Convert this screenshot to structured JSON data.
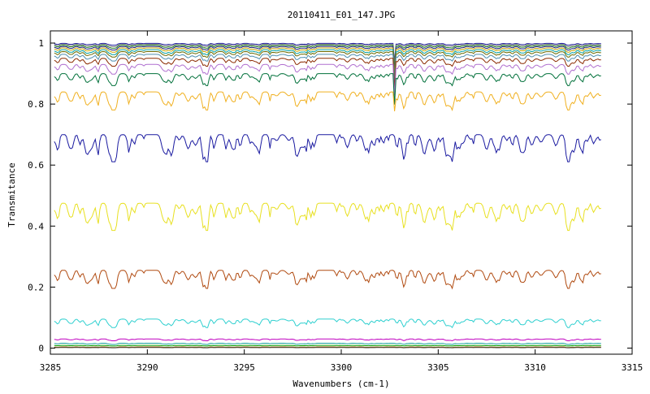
{
  "chart_data": {
    "type": "line",
    "title": "20110411_E01_147.JPG",
    "xlabel": "Wavenumbers (cm-1)",
    "ylabel": "Transmitance",
    "xlim": [
      3285,
      3315
    ],
    "ylim": [
      -0.02,
      1.04
    ],
    "x_ticks": [
      3285,
      3290,
      3295,
      3300,
      3305,
      3310,
      3315
    ],
    "y_ticks": [
      0,
      0.2,
      0.4,
      0.6,
      0.8,
      1
    ],
    "x_tick_labels": [
      "3285",
      "3290",
      "3295",
      "3300",
      "3305",
      "3310",
      "3315"
    ],
    "y_tick_labels": [
      "0",
      "0.2",
      "0.4",
      "0.6",
      "0.8",
      "1"
    ],
    "grid": false,
    "x_data_range": [
      3285.2,
      3313.4
    ],
    "sharp_absorption_line_x": 3302.75,
    "series": [
      {
        "baseline": 0.999,
        "noise": 0.003,
        "line_depth": 0.06,
        "color": "#1f1f9f"
      },
      {
        "baseline": 0.996,
        "noise": 0.004,
        "line_depth": 0.07,
        "color": "#888888"
      },
      {
        "baseline": 0.993,
        "noise": 0.005,
        "line_depth": 0.08,
        "color": "#2a8a2a"
      },
      {
        "baseline": 0.989,
        "noise": 0.006,
        "line_depth": 0.09,
        "color": "#1a1a7a"
      },
      {
        "baseline": 0.984,
        "noise": 0.007,
        "line_depth": 0.09,
        "color": "#c8a000"
      },
      {
        "baseline": 0.978,
        "noise": 0.008,
        "line_depth": 0.1,
        "color": "#00a0a0"
      },
      {
        "baseline": 0.972,
        "noise": 0.009,
        "line_depth": 0.1,
        "color": "#6a6a00"
      },
      {
        "baseline": 0.963,
        "noise": 0.011,
        "line_depth": 0.1,
        "color": "#4f8fb0"
      },
      {
        "baseline": 0.95,
        "noise": 0.013,
        "line_depth": 0.1,
        "color": "#8b2a00"
      },
      {
        "baseline": 0.93,
        "noise": 0.016,
        "line_depth": 0.1,
        "color": "#b070d0"
      },
      {
        "baseline": 0.9,
        "noise": 0.02,
        "line_depth": 0.1,
        "color": "#00703a"
      },
      {
        "baseline": 0.84,
        "noise": 0.03,
        "line_depth": 0.06,
        "color": "#f0b020"
      },
      {
        "baseline": 0.7,
        "noise": 0.045,
        "line_depth": 0.0,
        "color": "#1a1aa0"
      },
      {
        "baseline": 0.475,
        "noise": 0.045,
        "line_depth": 0.0,
        "color": "#e8e020"
      },
      {
        "baseline": 0.255,
        "noise": 0.03,
        "line_depth": 0.0,
        "color": "#b04a10"
      },
      {
        "baseline": 0.095,
        "noise": 0.014,
        "line_depth": 0.0,
        "color": "#30d0d0"
      },
      {
        "baseline": 0.03,
        "noise": 0.003,
        "line_depth": 0.0,
        "color": "#c000c0"
      },
      {
        "baseline": 0.016,
        "noise": 0.002,
        "line_depth": 0.0,
        "color": "#1aa0a0"
      },
      {
        "baseline": 0.009,
        "noise": 0.001,
        "line_depth": 0.0,
        "color": "#00a000"
      },
      {
        "baseline": 0.004,
        "noise": 0.001,
        "line_depth": 0.0,
        "color": "#a06000"
      },
      {
        "baseline": 0.002,
        "noise": 0.0005,
        "line_depth": 0.0,
        "color": "#404040"
      }
    ]
  }
}
